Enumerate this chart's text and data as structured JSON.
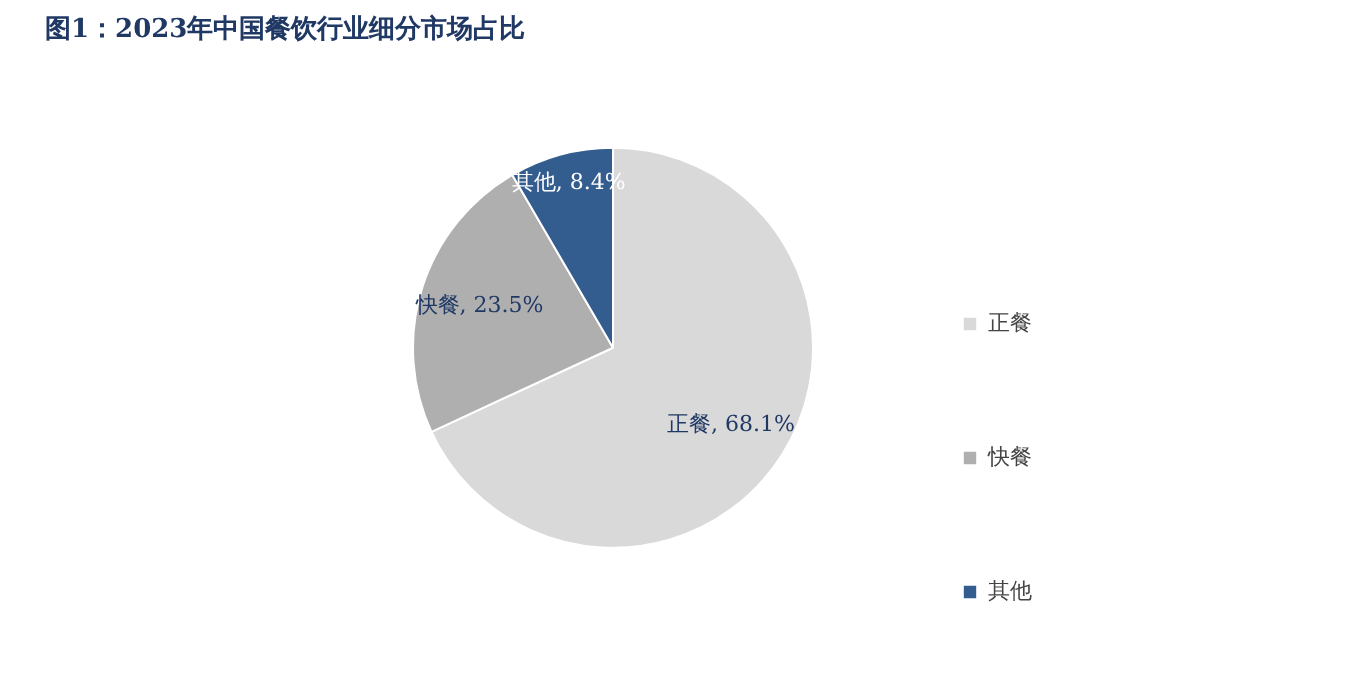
{
  "chart_data": {
    "type": "pie",
    "title": "图1：2023年中国餐饮行业细分市场占比",
    "categories": [
      "正餐",
      "快餐",
      "其他"
    ],
    "values": [
      68.1,
      23.5,
      8.4
    ],
    "colors": [
      "#d9d9d9",
      "#afafaf",
      "#335c8f"
    ],
    "value_labels": [
      "正餐, 68.1%",
      "快餐, 23.5%",
      "其他, 8.4%"
    ],
    "legend": "right"
  }
}
